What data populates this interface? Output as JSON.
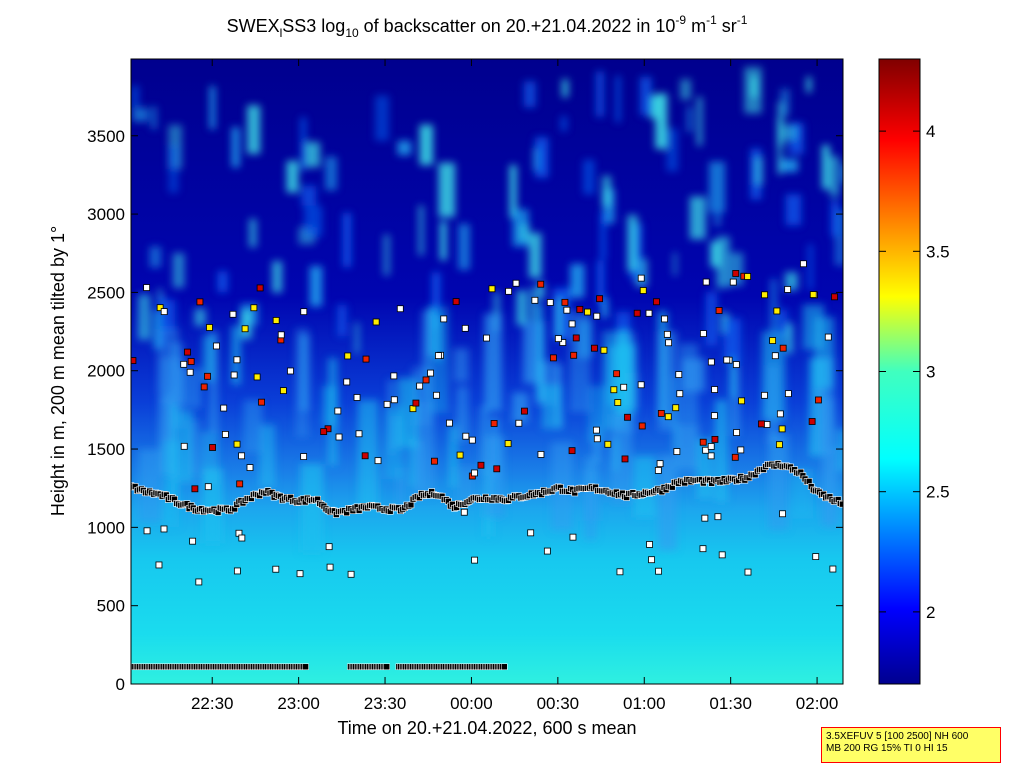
{
  "chart_data": {
    "type": "heatmap",
    "title": {
      "main_a": "SWEX",
      "sub_a": "l",
      "main_b": "SS3 log",
      "sub_b": "10",
      "main_c": " of backscatter on 20.+21.04.2022 in 10",
      "sup_c": "-9",
      "main_d": " m",
      "sup_d": "-1",
      "main_e": " sr",
      "sup_e": "-1"
    },
    "xlabel": "Time on 20.+21.04.2022, 600 s mean",
    "ylabel": "Height in m, 200 m mean tilted by 1°",
    "x_range_hours": [
      22.03,
      26.15
    ],
    "x_ticks": [
      {
        "value": 22.5,
        "label": "22:30"
      },
      {
        "value": 23.0,
        "label": "23:00"
      },
      {
        "value": 23.5,
        "label": "23:30"
      },
      {
        "value": 24.0,
        "label": "00:00"
      },
      {
        "value": 24.5,
        "label": "00:30"
      },
      {
        "value": 25.0,
        "label": "01:00"
      },
      {
        "value": 25.5,
        "label": "01:30"
      },
      {
        "value": 26.0,
        "label": "02:00"
      }
    ],
    "y_range": [
      0,
      3990
    ],
    "y_ticks": [
      0,
      500,
      1000,
      1500,
      2000,
      2500,
      3000,
      3500
    ],
    "y_tick_labels": [
      "0",
      "500",
      "1000",
      "1500",
      "2000",
      "2500",
      "3000",
      "3500"
    ],
    "colorbar": {
      "range": [
        1.7,
        4.3
      ],
      "ticks": [
        2,
        2.5,
        3,
        3.5,
        4
      ],
      "tick_labels": [
        "2",
        "2.5",
        "3",
        "3.5",
        "4"
      ],
      "colormap": "jet"
    },
    "boundary_layer_top_m": [
      [
        22.03,
        1260
      ],
      [
        22.1,
        1230
      ],
      [
        22.2,
        1210
      ],
      [
        22.3,
        1160
      ],
      [
        22.4,
        1120
      ],
      [
        22.5,
        1110
      ],
      [
        22.6,
        1110
      ],
      [
        22.7,
        1180
      ],
      [
        22.8,
        1230
      ],
      [
        22.9,
        1190
      ],
      [
        23.0,
        1170
      ],
      [
        23.1,
        1180
      ],
      [
        23.2,
        1090
      ],
      [
        23.3,
        1110
      ],
      [
        23.4,
        1130
      ],
      [
        23.5,
        1120
      ],
      [
        23.6,
        1110
      ],
      [
        23.7,
        1200
      ],
      [
        23.8,
        1220
      ],
      [
        23.9,
        1130
      ],
      [
        24.0,
        1180
      ],
      [
        24.1,
        1190
      ],
      [
        24.2,
        1180
      ],
      [
        24.3,
        1200
      ],
      [
        24.4,
        1220
      ],
      [
        24.5,
        1250
      ],
      [
        24.6,
        1230
      ],
      [
        24.7,
        1250
      ],
      [
        24.8,
        1230
      ],
      [
        24.9,
        1200
      ],
      [
        25.0,
        1220
      ],
      [
        25.1,
        1240
      ],
      [
        25.2,
        1290
      ],
      [
        25.3,
        1300
      ],
      [
        25.4,
        1290
      ],
      [
        25.5,
        1300
      ],
      [
        25.6,
        1320
      ],
      [
        25.7,
        1390
      ],
      [
        25.8,
        1400
      ],
      [
        25.9,
        1350
      ],
      [
        26.0,
        1220
      ],
      [
        26.15,
        1150
      ]
    ],
    "surface_layer_segments": [
      [
        22.03,
        23.05
      ],
      [
        23.3,
        23.52
      ],
      [
        23.58,
        24.2
      ]
    ],
    "surface_layer_height_m": 110
  },
  "annotation": {
    "line1": "3.5XEFUV 5 [100 2500] NH 600",
    "line2": "MB 200 RG 15% TI 0 HI 15",
    "background": "#ffff66",
    "border": "#ff0000"
  }
}
